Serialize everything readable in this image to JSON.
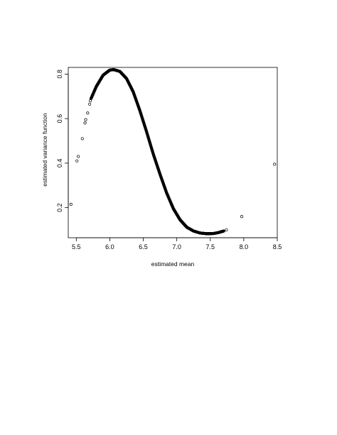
{
  "chart_data": {
    "type": "scatter",
    "title": "",
    "xlabel": "estimated mean",
    "ylabel": "estimated variance function",
    "xlim": [
      5.38,
      8.5
    ],
    "ylim": [
      0.065,
      0.83
    ],
    "xticks": [
      5.5,
      6.0,
      6.5,
      7.0,
      7.5,
      8.0,
      8.5
    ],
    "xtick_labels": [
      "5.5",
      "6.0",
      "6.5",
      "7.0",
      "7.5",
      "8.0",
      "8.5"
    ],
    "yticks": [
      0.2,
      0.4,
      0.6,
      0.8
    ],
    "ytick_labels": [
      "0.2",
      "0.4",
      "0.6",
      "0.8"
    ],
    "grid": false,
    "legend": null,
    "marker": "open-circle",
    "color": "#000000",
    "sparse_points": [
      {
        "x": 5.42,
        "y": 0.215
      },
      {
        "x": 5.51,
        "y": 0.41
      },
      {
        "x": 5.53,
        "y": 0.43
      },
      {
        "x": 5.59,
        "y": 0.51
      },
      {
        "x": 5.63,
        "y": 0.58
      },
      {
        "x": 5.64,
        "y": 0.595
      },
      {
        "x": 5.67,
        "y": 0.625
      },
      {
        "x": 5.7,
        "y": 0.665
      },
      {
        "x": 5.71,
        "y": 0.68
      },
      {
        "x": 7.74,
        "y": 0.1
      },
      {
        "x": 7.97,
        "y": 0.16
      },
      {
        "x": 8.46,
        "y": 0.395
      }
    ],
    "dense_curve_keypoints": [
      {
        "x": 5.72,
        "y": 0.69
      },
      {
        "x": 5.8,
        "y": 0.745
      },
      {
        "x": 5.9,
        "y": 0.795
      },
      {
        "x": 6.0,
        "y": 0.818
      },
      {
        "x": 6.06,
        "y": 0.82
      },
      {
        "x": 6.15,
        "y": 0.812
      },
      {
        "x": 6.25,
        "y": 0.78
      },
      {
        "x": 6.35,
        "y": 0.72
      },
      {
        "x": 6.45,
        "y": 0.635
      },
      {
        "x": 6.55,
        "y": 0.54
      },
      {
        "x": 6.65,
        "y": 0.44
      },
      {
        "x": 6.75,
        "y": 0.35
      },
      {
        "x": 6.85,
        "y": 0.265
      },
      {
        "x": 6.95,
        "y": 0.195
      },
      {
        "x": 7.05,
        "y": 0.145
      },
      {
        "x": 7.15,
        "y": 0.112
      },
      {
        "x": 7.25,
        "y": 0.095
      },
      {
        "x": 7.35,
        "y": 0.086
      },
      {
        "x": 7.45,
        "y": 0.083
      },
      {
        "x": 7.55,
        "y": 0.084
      },
      {
        "x": 7.62,
        "y": 0.088
      },
      {
        "x": 7.7,
        "y": 0.095
      }
    ]
  }
}
